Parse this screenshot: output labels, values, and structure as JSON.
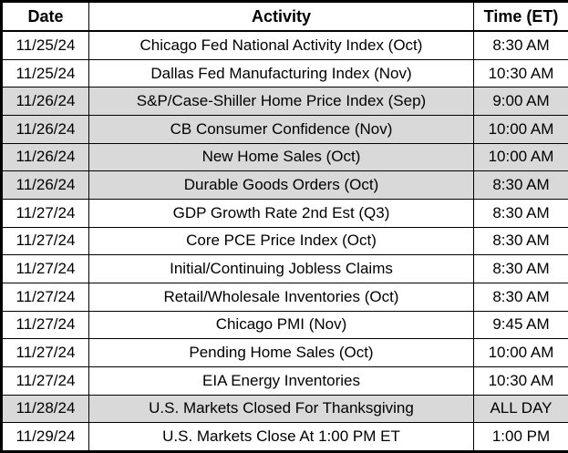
{
  "table": {
    "columns": [
      "Date",
      "Activity",
      "Time (ET)"
    ],
    "rows": [
      {
        "date": "11/25/24",
        "activity": "Chicago Fed National Activity Index (Oct)",
        "time": "8:30 AM",
        "shaded": false
      },
      {
        "date": "11/25/24",
        "activity": "Dallas Fed Manufacturing Index (Nov)",
        "time": "10:30 AM",
        "shaded": false
      },
      {
        "date": "11/26/24",
        "activity": "S&P/Case-Shiller Home Price Index (Sep)",
        "time": "9:00 AM",
        "shaded": true
      },
      {
        "date": "11/26/24",
        "activity": "CB Consumer Confidence (Nov)",
        "time": "10:00 AM",
        "shaded": true
      },
      {
        "date": "11/26/24",
        "activity": "New Home Sales (Oct)",
        "time": "10:00 AM",
        "shaded": true
      },
      {
        "date": "11/26/24",
        "activity": "Durable Goods Orders (Oct)",
        "time": "8:30 AM",
        "shaded": true
      },
      {
        "date": "11/27/24",
        "activity": "GDP Growth Rate 2nd Est (Q3)",
        "time": "8:30 AM",
        "shaded": false
      },
      {
        "date": "11/27/24",
        "activity": "Core PCE Price Index (Oct)",
        "time": "8:30 AM",
        "shaded": false
      },
      {
        "date": "11/27/24",
        "activity": "Initial/Continuing Jobless Claims",
        "time": "8:30 AM",
        "shaded": false
      },
      {
        "date": "11/27/24",
        "activity": "Retail/Wholesale Inventories (Oct)",
        "time": "8:30 AM",
        "shaded": false
      },
      {
        "date": "11/27/24",
        "activity": "Chicago PMI (Nov)",
        "time": "9:45 AM",
        "shaded": false
      },
      {
        "date": "11/27/24",
        "activity": "Pending Home Sales (Oct)",
        "time": "10:00 AM",
        "shaded": false
      },
      {
        "date": "11/27/24",
        "activity": "EIA Energy Inventories",
        "time": "10:30 AM",
        "shaded": false
      },
      {
        "date": "11/28/24",
        "activity": "U.S. Markets Closed For Thanksgiving",
        "time": "ALL DAY",
        "shaded": true
      },
      {
        "date": "11/29/24",
        "activity": "U.S. Markets Close At 1:00 PM ET",
        "time": "1:00 PM",
        "shaded": false
      }
    ]
  },
  "colors": {
    "border": "#000000",
    "shaded_row": "#d9d9d9",
    "text": "#000000",
    "background": "#ffffff"
  }
}
